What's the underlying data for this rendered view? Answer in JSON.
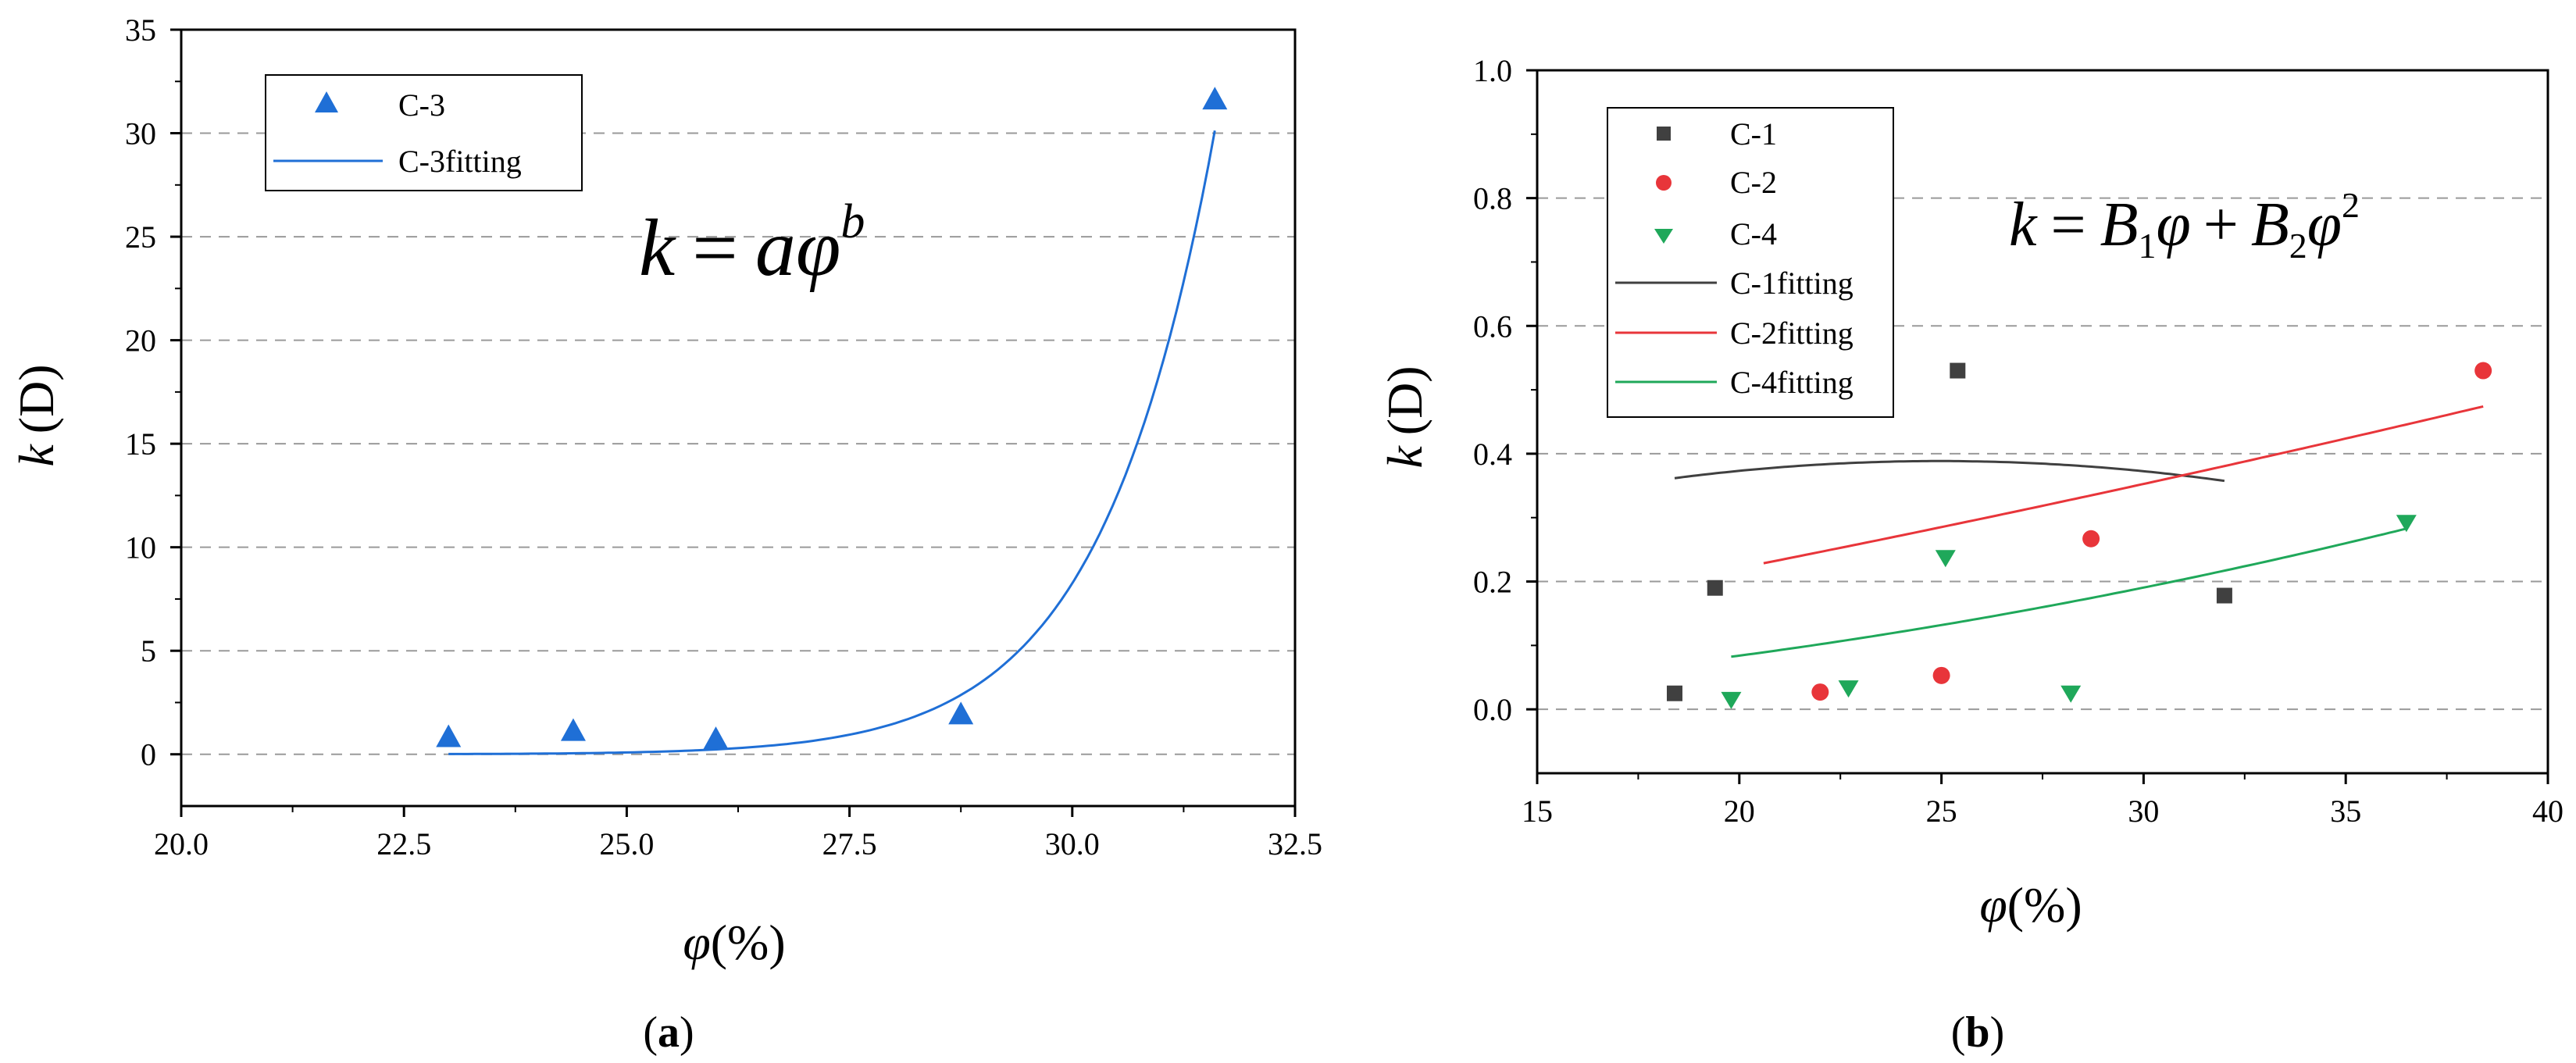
{
  "colors": {
    "c1": "#404040",
    "c2": "#e8353a",
    "c3": "#1f6fd6",
    "c4": "#1fa85a",
    "grid": "#9a9a9a"
  },
  "chart_data": [
    {
      "id": "a",
      "type": "scatter",
      "subfigure_label": "a",
      "formula": "k = aφ^b",
      "formula_parts": {
        "lhs": "k",
        "eq": "=",
        "rhs_base": "aφ",
        "rhs_exp": "b"
      },
      "xlabel": {
        "symbol": "φ",
        "unit": "(%)"
      },
      "ylabel": {
        "symbol": "k",
        "unit": "(D)"
      },
      "xlim": [
        20.0,
        32.5
      ],
      "ylim": [
        -2.5,
        35
      ],
      "xticks": [
        20.0,
        22.5,
        25.0,
        27.5,
        30.0,
        32.5
      ],
      "xtick_labels": [
        "20.0",
        "22.5",
        "25.0",
        "27.5",
        "30.0",
        "32.5"
      ],
      "yticks": [
        0,
        5,
        10,
        15,
        20,
        25,
        30,
        35
      ],
      "ytick_labels": [
        "0",
        "5",
        "10",
        "15",
        "20",
        "25",
        "30",
        "35"
      ],
      "grid": "horizontal dashed",
      "legend_position": "top-left",
      "series": [
        {
          "name": "C-3",
          "marker": "triangle-up",
          "color": "#1f6fd6",
          "points": [
            [
              23.0,
              0.8
            ],
            [
              24.4,
              1.1
            ],
            [
              26.0,
              0.7
            ],
            [
              28.75,
              1.9
            ],
            [
              31.6,
              31.6
            ]
          ]
        }
      ],
      "fits": [
        {
          "name": "C-3fitting",
          "model": "power",
          "color": "#1f6fd6",
          "a": 1.37e-36,
          "b": 24.9,
          "x_range": [
            23.0,
            31.6
          ]
        }
      ]
    },
    {
      "id": "b",
      "type": "scatter",
      "subfigure_label": "b",
      "formula": "k = B1φ + B2φ^2",
      "formula_parts": {
        "lhs": "k",
        "eq": "=",
        "t1": "B",
        "t1sub": "1",
        "t1var": "φ",
        "plus": "+",
        "t2": "B",
        "t2sub": "2",
        "t2var": "φ",
        "t2exp": "2"
      },
      "xlabel": {
        "symbol": "φ",
        "unit": "(%)"
      },
      "ylabel": {
        "symbol": "k",
        "unit": "(D)"
      },
      "xlim": [
        15,
        40
      ],
      "ylim": [
        -0.1,
        1.0
      ],
      "xticks": [
        15,
        20,
        25,
        30,
        35,
        40
      ],
      "xtick_labels": [
        "15",
        "20",
        "25",
        "30",
        "35",
        "40"
      ],
      "yticks": [
        0.0,
        0.2,
        0.4,
        0.6,
        0.8,
        1.0
      ],
      "ytick_labels": [
        "0.0",
        "0.2",
        "0.4",
        "0.6",
        "0.8",
        "1.0"
      ],
      "grid": "horizontal dashed",
      "legend_position": "top-left",
      "series": [
        {
          "name": "C-1",
          "marker": "square",
          "color": "#404040",
          "points": [
            [
              18.4,
              0.025
            ],
            [
              19.4,
              0.19
            ],
            [
              25.4,
              0.53
            ],
            [
              32.0,
              0.178
            ]
          ]
        },
        {
          "name": "C-2",
          "marker": "circle",
          "color": "#e8353a",
          "points": [
            [
              22.0,
              0.027
            ],
            [
              25.0,
              0.053
            ],
            [
              28.7,
              0.267
            ],
            [
              38.4,
              0.53
            ]
          ]
        },
        {
          "name": "C-4",
          "marker": "triangle-down",
          "color": "#1fa85a",
          "points": [
            [
              19.8,
              0.015
            ],
            [
              22.7,
              0.033
            ],
            [
              25.1,
              0.237
            ],
            [
              28.2,
              0.025
            ],
            [
              36.5,
              0.292
            ]
          ]
        }
      ],
      "fits": [
        {
          "name": "C-1fitting",
          "model": "quadratic",
          "color": "#404040",
          "B1": 0.03114,
          "B2": -0.000624,
          "x_range": [
            18.4,
            32.0
          ]
        },
        {
          "name": "C-2fitting",
          "model": "quadratic",
          "color": "#e8353a",
          "B1": 0.009656,
          "B2": 7e-05,
          "x_range": [
            20.6,
            38.4
          ]
        },
        {
          "name": "C-4fitting",
          "model": "quadratic",
          "color": "#1fa85a",
          "B1": -0.0001,
          "B2": 0.000215,
          "x_range": [
            19.8,
            36.5
          ]
        }
      ]
    }
  ]
}
